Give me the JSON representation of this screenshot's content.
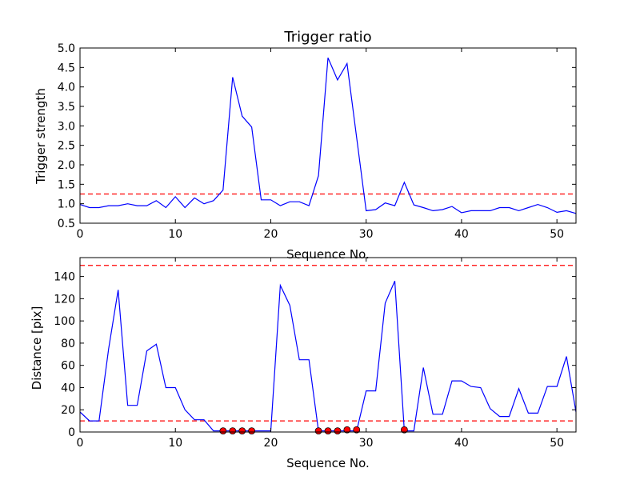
{
  "chart_data": [
    {
      "type": "line",
      "title": "Trigger ratio",
      "xlabel": "Sequence No.",
      "ylabel": "Trigger strength",
      "xlim": [
        0,
        52
      ],
      "ylim": [
        0.5,
        5.0
      ],
      "xticks": [
        0,
        10,
        20,
        30,
        40,
        50
      ],
      "yticks": [
        0.5,
        1.0,
        1.5,
        2.0,
        2.5,
        3.0,
        3.5,
        4.0,
        4.5,
        5.0
      ],
      "ytick_labels": [
        "0.5",
        "1.0",
        "1.5",
        "2.0",
        "2.5",
        "3.0",
        "3.5",
        "4.0",
        "4.5",
        "5.0"
      ],
      "grid": false,
      "line_color": "#0000ff",
      "threshold_color": "#ff0000",
      "threshold": 1.25,
      "x": [
        0,
        1,
        2,
        3,
        4,
        5,
        6,
        7,
        8,
        9,
        10,
        11,
        12,
        13,
        14,
        15,
        16,
        17,
        18,
        19,
        20,
        21,
        22,
        23,
        24,
        25,
        26,
        27,
        28,
        29,
        30,
        31,
        32,
        33,
        34,
        35,
        36,
        37,
        38,
        39,
        40,
        41,
        42,
        43,
        44,
        45,
        46,
        47,
        48,
        49,
        50,
        51,
        52
      ],
      "y": [
        0.98,
        0.9,
        0.9,
        0.95,
        0.95,
        1.0,
        0.95,
        0.95,
        1.08,
        0.9,
        1.18,
        0.9,
        1.15,
        1.0,
        1.08,
        1.35,
        4.25,
        3.25,
        2.97,
        1.1,
        1.1,
        0.95,
        1.05,
        1.05,
        0.95,
        1.72,
        4.75,
        4.18,
        4.6,
        2.7,
        0.82,
        0.85,
        1.02,
        0.95,
        1.55,
        0.97,
        0.9,
        0.82,
        0.85,
        0.93,
        0.77,
        0.82,
        0.82,
        0.82,
        0.9,
        0.9,
        0.82,
        0.9,
        0.98,
        0.9,
        0.78,
        0.82,
        0.75
      ]
    },
    {
      "type": "line",
      "title": "",
      "xlabel": "Sequence No.",
      "ylabel": "Distance [pix]",
      "xlim": [
        0,
        52
      ],
      "ylim": [
        0,
        157
      ],
      "xticks": [
        0,
        10,
        20,
        30,
        40,
        50
      ],
      "yticks": [
        0,
        20,
        40,
        60,
        80,
        100,
        120,
        140
      ],
      "ytick_labels": [
        "0",
        "20",
        "40",
        "60",
        "80",
        "100",
        "120",
        "140"
      ],
      "grid": false,
      "line_color": "#0000ff",
      "threshold_color": "#ff0000",
      "marker_color": "#ff0000",
      "thresholds": [
        10,
        150
      ],
      "x": [
        0,
        1,
        2,
        3,
        4,
        5,
        6,
        7,
        8,
        9,
        10,
        11,
        12,
        13,
        14,
        15,
        16,
        17,
        18,
        19,
        20,
        21,
        22,
        23,
        24,
        25,
        26,
        27,
        28,
        29,
        30,
        31,
        32,
        33,
        34,
        35,
        36,
        37,
        38,
        39,
        40,
        41,
        42,
        43,
        44,
        45,
        46,
        47,
        48,
        49,
        50,
        51,
        52
      ],
      "y": [
        18,
        10,
        10,
        75,
        128,
        24,
        24,
        73,
        79,
        40,
        40,
        20,
        11,
        11,
        1,
        1,
        1,
        1,
        1,
        1,
        1,
        132,
        114,
        65,
        65,
        1,
        1,
        1,
        1,
        1,
        37,
        37,
        116,
        136,
        1,
        1,
        58,
        16,
        16,
        46,
        46,
        41,
        40,
        21,
        14,
        14,
        39,
        17,
        17,
        41,
        41,
        68,
        18
      ],
      "markers": {
        "x": [
          15,
          16,
          17,
          18,
          25,
          26,
          27,
          28,
          29,
          34
        ],
        "y": [
          1,
          1,
          1,
          1,
          1,
          1,
          1,
          2,
          2,
          2
        ]
      }
    }
  ]
}
